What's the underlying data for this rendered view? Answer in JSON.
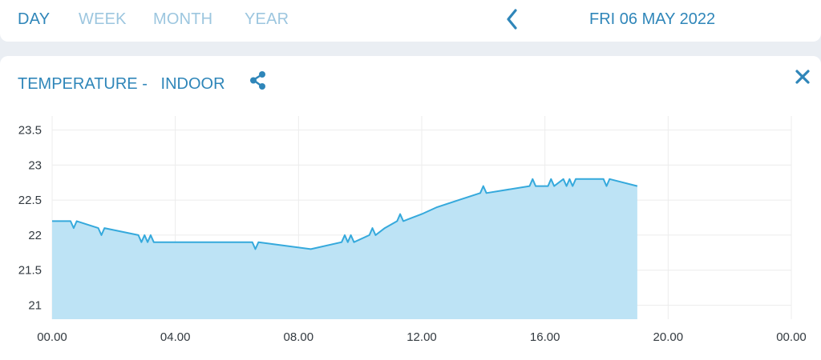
{
  "tabs": [
    {
      "label": "DAY",
      "active": true
    },
    {
      "label": "WEEK",
      "active": false
    },
    {
      "label": "MONTH",
      "active": false
    },
    {
      "label": "YEAR",
      "active": false
    }
  ],
  "nav": {
    "prev_icon": "chevron-left-icon",
    "date": "FRI 06 MAY 2022"
  },
  "card": {
    "title_prefix": "TEMPERATURE -",
    "title_location": "INDOOR",
    "share_icon": "share-icon",
    "close_icon": "close-icon"
  },
  "colors": {
    "accent": "#2f86b9",
    "inactive": "#9cc6df",
    "line": "#35a9dc",
    "fill": "#bde3f5"
  },
  "chart_data": {
    "type": "area",
    "title": "",
    "xlabel": "",
    "ylabel": "",
    "x_ticks": [
      "00.00",
      "04.00",
      "08.00",
      "12.00",
      "16.00",
      "20.00",
      "00.00"
    ],
    "y_ticks": [
      "21",
      "21.5",
      "22",
      "22.5",
      "23",
      "23.5"
    ],
    "xlim": [
      0,
      24
    ],
    "ylim": [
      20.8,
      23.7
    ],
    "grid": true,
    "legend": "none",
    "series": [
      {
        "x": [
          0,
          0.6,
          0.7,
          0.8,
          1.5,
          1.6,
          1.7,
          2.8,
          2.9,
          3.0,
          3.1,
          3.2,
          3.3,
          6.5,
          6.6,
          6.7,
          8.4,
          9.4,
          9.5,
          9.6,
          9.7,
          9.8,
          10.3,
          10.4,
          10.5,
          10.8,
          11.2,
          11.3,
          11.4,
          12.0,
          12.5,
          13.2,
          13.9,
          14.0,
          14.1,
          15.5,
          15.6,
          15.7,
          16.1,
          16.2,
          16.3,
          16.6,
          16.7,
          16.8,
          16.9,
          17.0,
          17.9,
          18.0,
          18.1,
          19.0
        ],
        "y": [
          22.2,
          22.2,
          22.1,
          22.2,
          22.1,
          22.0,
          22.1,
          22.0,
          21.9,
          22.0,
          21.9,
          22.0,
          21.9,
          21.9,
          21.8,
          21.9,
          21.8,
          21.9,
          22.0,
          21.9,
          22.0,
          21.9,
          22.0,
          22.1,
          22.0,
          22.1,
          22.2,
          22.3,
          22.2,
          22.3,
          22.4,
          22.5,
          22.6,
          22.7,
          22.6,
          22.7,
          22.8,
          22.7,
          22.7,
          22.8,
          22.7,
          22.8,
          22.7,
          22.8,
          22.7,
          22.8,
          22.8,
          22.7,
          22.8,
          22.7
        ]
      }
    ]
  }
}
